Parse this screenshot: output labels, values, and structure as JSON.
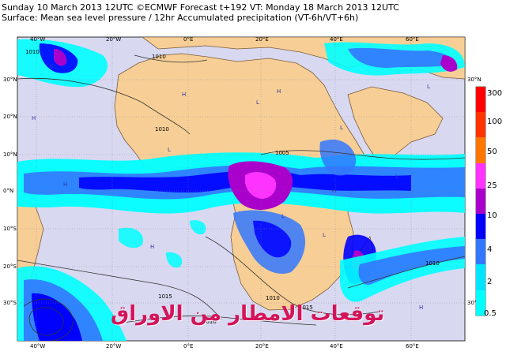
{
  "header": {
    "line1": "Sunday 10 March 2013 12UTC ©ECMWF Forecast t+192 VT: Monday 18 March 2013 12UTC",
    "line2": "Surface: Mean sea level pressure / 12hr Accumulated precipitation (VT-6h/VT+6h)"
  },
  "map": {
    "lon_labels": [
      "40°W",
      "20°W",
      "0°E",
      "20°E",
      "40°E",
      "60°E"
    ],
    "lat_labels": [
      "30°N",
      "20°N",
      "10°N",
      "0°N",
      "10°S",
      "20°S",
      "30°S"
    ],
    "right_lat_labels": [
      "30°N",
      "30°S"
    ],
    "isobars": [
      "1010",
      "1010",
      "1010",
      "1005",
      "1010",
      "1015",
      "1010",
      "1015",
      "1010"
    ],
    "highs": [
      "H",
      "H",
      "H",
      "H",
      "H",
      "H",
      "H",
      "H"
    ],
    "lows": [
      "L",
      "L",
      "L",
      "L",
      "L",
      "L",
      "L"
    ],
    "colors": {
      "ocean": "#d8d8f0",
      "land": "#f7cf96",
      "coast": "#7a5c3a",
      "grid": "#8080a0"
    }
  },
  "legend": {
    "levels": [
      "300",
      "100",
      "50",
      "25",
      "10",
      "4",
      "2",
      "0.5"
    ],
    "colors": [
      "#ff0000",
      "#ff3300",
      "#ff7700",
      "#ff33ff",
      "#aa00cc",
      "#0000ff",
      "#3377ff",
      "#00e5ff",
      "#00ffff"
    ]
  },
  "watermark": "توقعات الامطار من الاوراق"
}
